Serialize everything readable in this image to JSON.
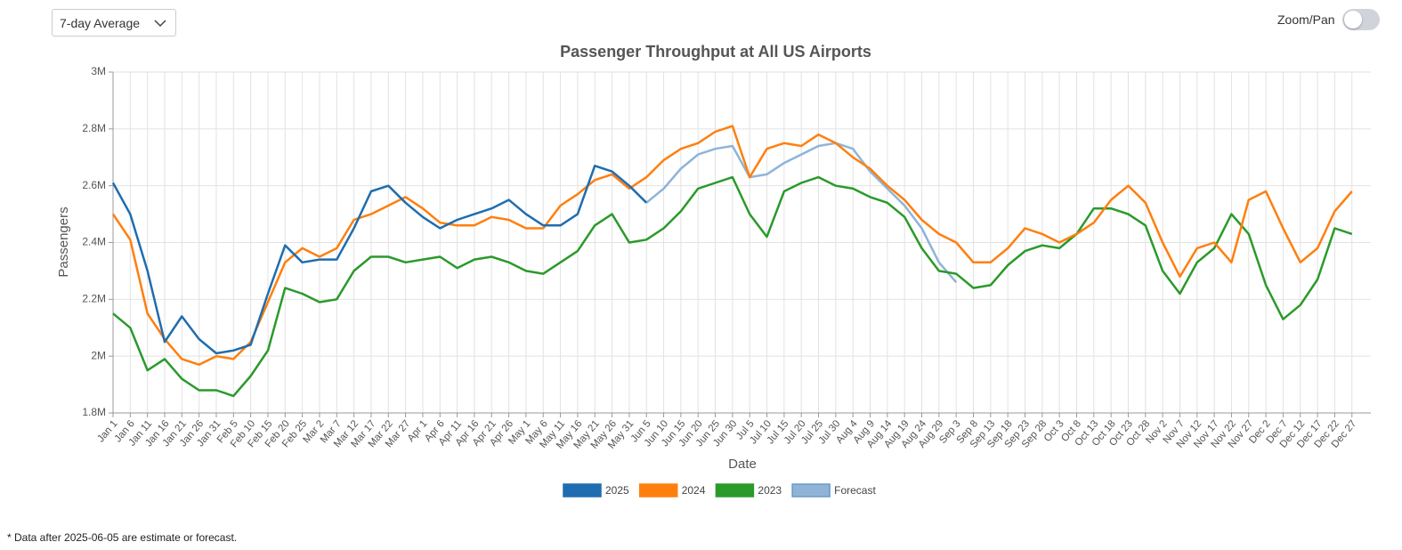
{
  "controls": {
    "average_select": "7-day Average",
    "zoom_pan_label": "Zoom/Pan"
  },
  "chart_data": {
    "type": "line",
    "title": "Passenger Throughput at All US Airports",
    "x_label": "Date",
    "y_label": "Passengers",
    "categories": [
      "Jan 1",
      "Jan 6",
      "Jan 11",
      "Jan 16",
      "Jan 21",
      "Jan 26",
      "Jan 31",
      "Feb 5",
      "Feb 10",
      "Feb 15",
      "Feb 20",
      "Feb 25",
      "Mar 2",
      "Mar 7",
      "Mar 12",
      "Mar 17",
      "Mar 22",
      "Mar 27",
      "Apr 1",
      "Apr 6",
      "Apr 11",
      "Apr 16",
      "Apr 21",
      "Apr 26",
      "May 1",
      "May 6",
      "May 11",
      "May 16",
      "May 21",
      "May 26",
      "May 31",
      "Jun 5",
      "Jun 10",
      "Jun 15",
      "Jun 20",
      "Jun 25",
      "Jun 30",
      "Jul 5",
      "Jul 10",
      "Jul 15",
      "Jul 20",
      "Jul 25",
      "Jul 30",
      "Aug 4",
      "Aug 9",
      "Aug 14",
      "Aug 19",
      "Aug 24",
      "Aug 29",
      "Sep 3",
      "Sep 8",
      "Sep 13",
      "Sep 18",
      "Sep 23",
      "Sep 28",
      "Oct 3",
      "Oct 8",
      "Oct 13",
      "Oct 18",
      "Oct 23",
      "Oct 28",
      "Nov 2",
      "Nov 7",
      "Nov 12",
      "Nov 17",
      "Nov 22",
      "Nov 27",
      "Dec 2",
      "Dec 7",
      "Dec 12",
      "Dec 17",
      "Dec 22",
      "Dec 27"
    ],
    "series": [
      {
        "name": "2025",
        "color": "#1f6db0",
        "values": [
          2610000,
          2500000,
          2300000,
          2050000,
          2140000,
          2060000,
          2010000,
          2020000,
          2040000,
          2220000,
          2390000,
          2330000,
          2340000,
          2340000,
          2450000,
          2580000,
          2600000,
          2540000,
          2490000,
          2450000,
          2480000,
          2500000,
          2520000,
          2550000,
          2500000,
          2460000,
          2460000,
          2500000,
          2670000,
          2650000,
          2600000,
          2540000,
          null,
          null,
          null,
          null,
          null,
          null,
          null,
          null,
          null,
          null,
          null,
          null,
          null,
          null,
          null,
          null,
          null,
          null,
          null,
          null,
          null,
          null,
          null,
          null,
          null,
          null,
          null,
          null,
          null,
          null,
          null,
          null,
          null,
          null,
          null,
          null,
          null,
          null,
          null,
          null,
          null
        ]
      },
      {
        "name": "2024",
        "color": "#ff7f0e",
        "values": [
          2500000,
          2410000,
          2150000,
          2060000,
          1990000,
          1970000,
          2000000,
          1990000,
          2050000,
          2190000,
          2330000,
          2380000,
          2350000,
          2380000,
          2480000,
          2500000,
          2530000,
          2560000,
          2520000,
          2470000,
          2460000,
          2460000,
          2490000,
          2480000,
          2450000,
          2450000,
          2530000,
          2570000,
          2620000,
          2640000,
          2590000,
          2630000,
          2690000,
          2730000,
          2750000,
          2790000,
          2810000,
          2630000,
          2730000,
          2750000,
          2740000,
          2780000,
          2750000,
          2700000,
          2660000,
          2600000,
          2550000,
          2480000,
          2430000,
          2400000,
          2330000,
          2330000,
          2380000,
          2450000,
          2430000,
          2400000,
          2430000,
          2470000,
          2550000,
          2600000,
          2540000,
          2400000,
          2280000,
          2380000,
          2400000,
          2330000,
          2550000,
          2580000,
          2450000,
          2330000,
          2380000,
          2510000,
          2580000
        ]
      },
      {
        "name": "2023",
        "color": "#2a9a2a",
        "values": [
          2150000,
          2100000,
          1950000,
          1990000,
          1920000,
          1880000,
          1880000,
          1860000,
          1930000,
          2020000,
          2240000,
          2220000,
          2190000,
          2200000,
          2300000,
          2350000,
          2350000,
          2330000,
          2340000,
          2350000,
          2310000,
          2340000,
          2350000,
          2330000,
          2300000,
          2290000,
          2330000,
          2370000,
          2460000,
          2500000,
          2400000,
          2410000,
          2450000,
          2510000,
          2590000,
          2610000,
          2630000,
          2500000,
          2420000,
          2580000,
          2610000,
          2630000,
          2600000,
          2590000,
          2560000,
          2540000,
          2490000,
          2380000,
          2300000,
          2290000,
          2240000,
          2250000,
          2320000,
          2370000,
          2390000,
          2380000,
          2430000,
          2520000,
          2520000,
          2500000,
          2460000,
          2300000,
          2220000,
          2330000,
          2380000,
          2500000,
          2430000,
          2250000,
          2130000,
          2180000,
          2270000,
          2450000,
          2430000
        ]
      },
      {
        "name": "Forecast",
        "color": "#8fb4d8",
        "values": [
          null,
          null,
          null,
          null,
          null,
          null,
          null,
          null,
          null,
          null,
          null,
          null,
          null,
          null,
          null,
          null,
          null,
          null,
          null,
          null,
          null,
          null,
          null,
          null,
          null,
          null,
          null,
          null,
          null,
          null,
          null,
          2540000,
          2590000,
          2660000,
          2710000,
          2730000,
          2740000,
          2630000,
          2640000,
          2680000,
          2710000,
          2740000,
          2750000,
          2730000,
          2650000,
          2590000,
          2530000,
          2450000,
          2330000,
          2260000,
          null,
          null,
          null,
          null,
          null,
          null,
          null,
          null,
          null,
          null,
          null,
          null,
          null,
          null,
          null,
          null,
          null,
          null,
          null,
          null,
          null,
          null,
          null
        ]
      }
    ],
    "ylim": [
      1800000,
      3000000
    ],
    "yticks": [
      {
        "value": 1800000,
        "label": "1.8M"
      },
      {
        "value": 2000000,
        "label": "2M"
      },
      {
        "value": 2200000,
        "label": "2.2M"
      },
      {
        "value": 2400000,
        "label": "2.4M"
      },
      {
        "value": 2600000,
        "label": "2.6M"
      },
      {
        "value": 2800000,
        "label": "2.8M"
      },
      {
        "value": 3000000,
        "label": "3M"
      }
    ],
    "grid": true,
    "legend": "bottom"
  },
  "footnote": "* Data after 2025-06-05 are estimate or forecast."
}
